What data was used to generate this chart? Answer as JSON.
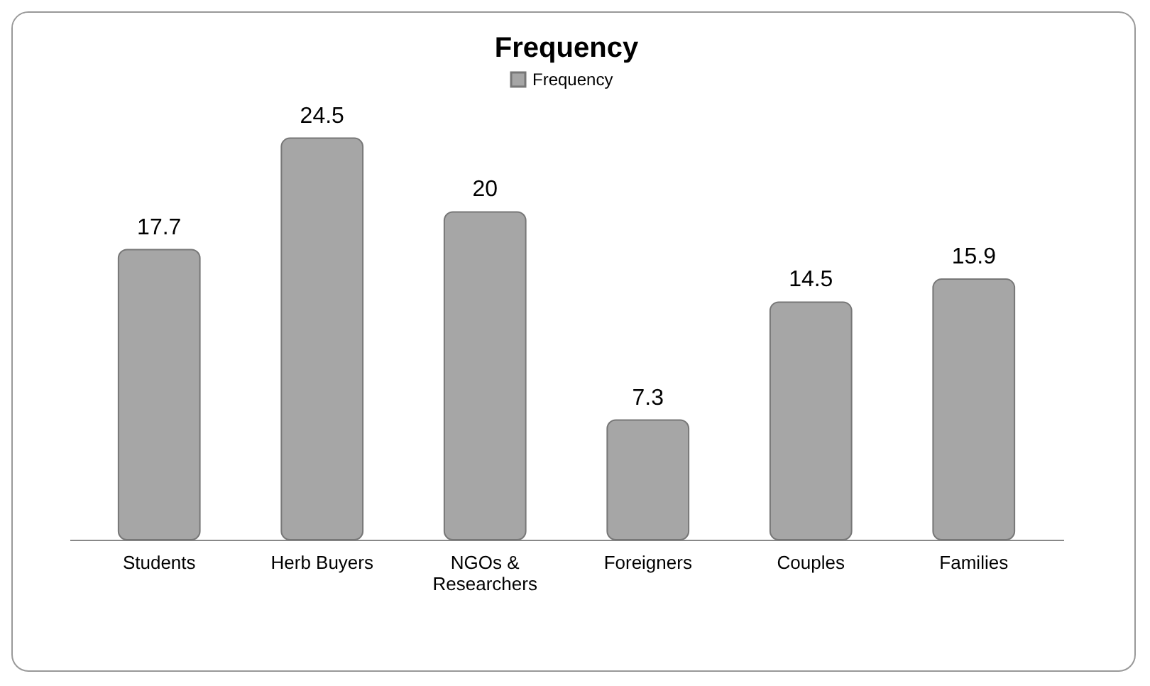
{
  "chart_data": {
    "type": "bar",
    "title": "Frequency",
    "categories": [
      "Students",
      "Herb Buyers",
      "NGOs & Researchers",
      "Foreigners",
      "Couples",
      "Families"
    ],
    "series": [
      {
        "name": "Frequency",
        "color": "#a6a6a6",
        "values": [
          17.7,
          24.5,
          20,
          7.3,
          14.5,
          15.9
        ]
      }
    ],
    "data_labels": true,
    "legend": "top"
  }
}
